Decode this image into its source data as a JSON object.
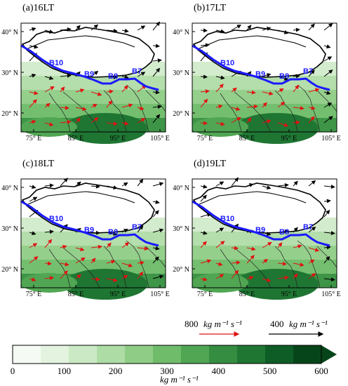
{
  "panels": [
    {
      "label": "(a)16LT"
    },
    {
      "label": "(b)17LT"
    },
    {
      "label": "(c)18LT"
    },
    {
      "label": "(d)19LT"
    }
  ],
  "axes": {
    "lat_ticks": [
      "40° N",
      "30° N",
      "20° N"
    ],
    "lon_ticks": [
      "75° E",
      "85° E",
      "95° E",
      "105° E"
    ]
  },
  "section_labels": [
    "B10",
    "B9",
    "B8",
    "B7"
  ],
  "reference_vectors": [
    {
      "value": "800",
      "units": "kg m⁻¹ s⁻¹",
      "color": "#e01010"
    },
    {
      "value": "400",
      "units": "kg m⁻¹ s⁻¹",
      "color": "#000000"
    }
  ],
  "colorbar": {
    "ticks": [
      "0",
      "100",
      "200",
      "300",
      "400",
      "500",
      "600"
    ],
    "units": "kg m⁻¹ s⁻¹",
    "colors": [
      "#f5fbf4",
      "#e3f3df",
      "#cbe9c4",
      "#aedca5",
      "#8fcd86",
      "#6fbc6a",
      "#50a653",
      "#358d41",
      "#1f7633",
      "#0e5d26",
      "#06451a"
    ]
  },
  "colors": {
    "terrain_line": "#000000",
    "section_line": "#1a1aff",
    "red_vectors": "#e01010"
  }
}
